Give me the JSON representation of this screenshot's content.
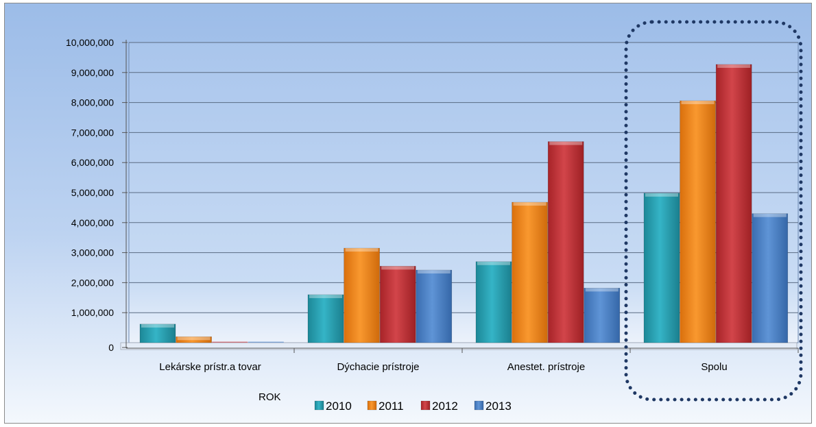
{
  "chart_data": {
    "type": "bar",
    "categories": [
      "Lekárske prístr.a tovar",
      "Dýchacie prístroje",
      "Anestet. prístroje",
      "Spolu"
    ],
    "series": [
      {
        "name": "2010",
        "values": [
          620000,
          1600000,
          2700000,
          4980000
        ]
      },
      {
        "name": "2011",
        "values": [
          200000,
          3150000,
          4680000,
          8060000
        ]
      },
      {
        "name": "2012",
        "values": [
          0,
          2550000,
          6700000,
          9270000
        ]
      },
      {
        "name": "2013",
        "values": [
          0,
          2420000,
          1820000,
          4300000
        ]
      }
    ],
    "ylim": [
      0,
      10000000
    ],
    "yticks": [
      "0",
      "1,000,000",
      "2,000,000",
      "3,000,000",
      "4,000,000",
      "5,000,000",
      "6,000,000",
      "7,000,000",
      "8,000,000",
      "9,000,000",
      "10,000,000"
    ],
    "xlabel": "ROK",
    "grid": true,
    "legend": "bottom",
    "highlight": {
      "category": "Spolu",
      "style": "dotted-rounded-rectangle"
    },
    "colors": {
      "series": [
        "#2aa7b8",
        "#f28a1e",
        "#c8353a",
        "#4f84c9"
      ],
      "background_top": "#9dbde8",
      "background_bottom": "#ffffff",
      "highlight_border": "#1f3864"
    }
  }
}
